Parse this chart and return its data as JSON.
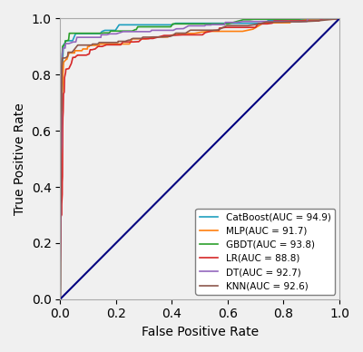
{
  "title": "",
  "xlabel": "False Positive Rate",
  "ylabel": "True Positive Rate",
  "xlim": [
    0.0,
    1.0
  ],
  "ylim": [
    0.0,
    1.0
  ],
  "xticks": [
    0.0,
    0.2,
    0.4,
    0.6,
    0.8,
    1.0
  ],
  "yticks": [
    0.0,
    0.2,
    0.4,
    0.6,
    0.8,
    1.0
  ],
  "legend_loc": "lower right",
  "models": [
    {
      "name": "CatBoost(AUC = 94.9)",
      "color": "#1f9fbf",
      "auc": 0.949,
      "initial_tpr": 0.915,
      "initial_fpr": 0.018
    },
    {
      "name": "MLP(AUC = 91.7)",
      "color": "#ff7f0e",
      "auc": 0.917,
      "initial_tpr": 0.855,
      "initial_fpr": 0.022
    },
    {
      "name": "GBDT(AUC = 93.8)",
      "color": "#2ca02c",
      "auc": 0.938,
      "initial_tpr": 0.91,
      "initial_fpr": 0.018
    },
    {
      "name": "LR(AUC = 88.8)",
      "color": "#d62728",
      "auc": 0.888,
      "initial_tpr": 0.84,
      "initial_fpr": 0.04
    },
    {
      "name": "DT(AUC = 92.7)",
      "color": "#9467bd",
      "auc": 0.927,
      "initial_tpr": 0.895,
      "initial_fpr": 0.018
    },
    {
      "name": "KNN(AUC = 92.6)",
      "color": "#8c564b",
      "auc": 0.926,
      "initial_tpr": 0.86,
      "initial_fpr": 0.02
    }
  ],
  "diagonal_color": "navy",
  "background_color": "#f0f0f0",
  "figsize": [
    4.0,
    3.88
  ],
  "dpi": 100
}
